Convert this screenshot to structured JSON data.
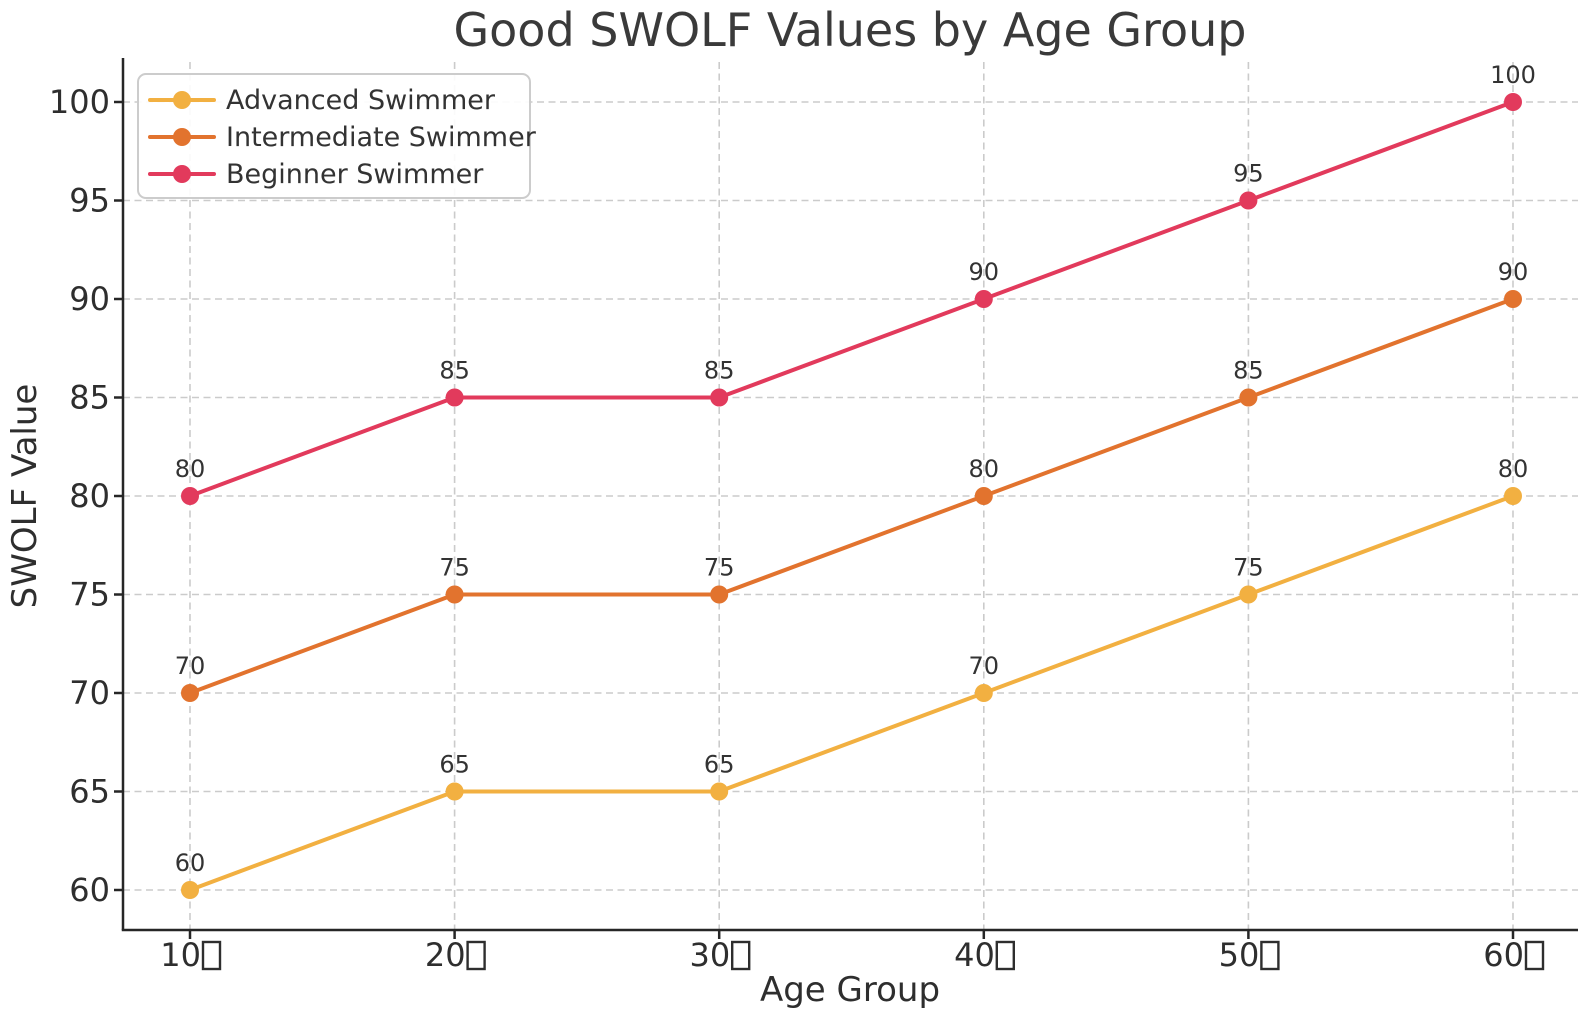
{
  "figure": {
    "background": "#ffffff"
  },
  "chart_data": {
    "type": "line",
    "title": "Good SWOLF Values by Age Group",
    "xlabel": "Age Group",
    "ylabel": "SWOLF Value",
    "categories": [
      "10",
      "20",
      "30",
      "40",
      "50",
      "60"
    ],
    "x_tick_suffix": "missing-glyph-box",
    "series": [
      {
        "name": "Advanced Swimmer",
        "color": "#F2B041",
        "values": [
          60,
          65,
          65,
          70,
          75,
          80
        ]
      },
      {
        "name": "Intermediate Swimmer",
        "color": "#E2732E",
        "values": [
          70,
          75,
          75,
          80,
          85,
          90
        ]
      },
      {
        "name": "Beginner Swimmer",
        "color": "#E23A5C",
        "values": [
          80,
          85,
          85,
          90,
          95,
          100
        ]
      }
    ],
    "point_labels": [
      [
        "60",
        "65",
        "65",
        "70",
        "75",
        "80"
      ],
      [
        "70",
        "75",
        "75",
        "80",
        "85",
        "90"
      ],
      [
        "80",
        "85",
        "85",
        "90",
        "95",
        "100"
      ]
    ],
    "y_ticks": [
      60,
      65,
      70,
      75,
      80,
      85,
      90,
      95,
      100
    ],
    "ylim": [
      58,
      102
    ],
    "grid": "dashed, both axes",
    "legend_position": "upper left",
    "colors": {
      "grid": "#cbcbcb",
      "spine": "#262626",
      "tick_text": "#2e2e2e",
      "title_text": "#3a3a3a",
      "annotation_text": "#333333",
      "legend_border": "#cccccc",
      "legend_background": "#ffffff"
    }
  }
}
